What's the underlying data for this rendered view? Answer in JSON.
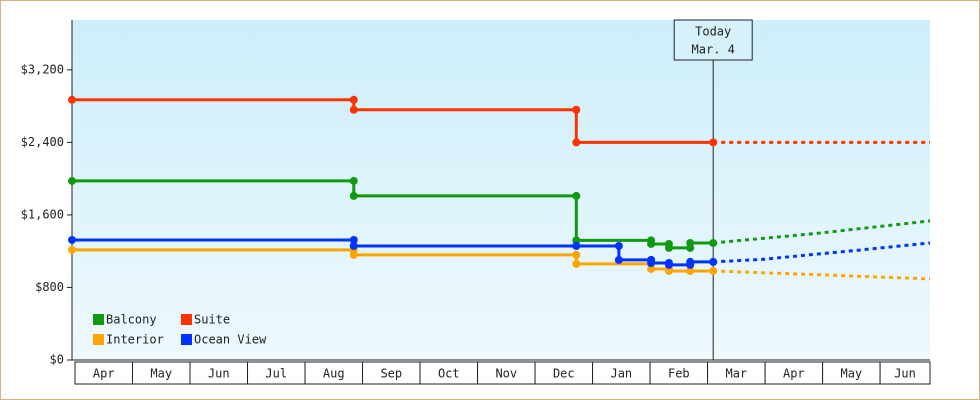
{
  "chart_data": {
    "type": "step-line",
    "categories": [
      "Apr",
      "May",
      "Jun",
      "Jul",
      "Aug",
      "Sep",
      "Oct",
      "Nov",
      "Dec",
      "Jan",
      "Feb",
      "Mar",
      "Apr",
      "May",
      "Jun"
    ],
    "xlim": [
      0,
      14.92
    ],
    "ylim": [
      0,
      3750
    ],
    "yticks": [
      {
        "value": 0,
        "label": "$0"
      },
      {
        "value": 800,
        "label": "$800"
      },
      {
        "value": 1600,
        "label": "$1,600"
      },
      {
        "value": 2400,
        "label": "$2,400"
      },
      {
        "value": 3200,
        "label": "$3,200"
      }
    ],
    "today": {
      "x": 11.15,
      "label": [
        "Today",
        "Mar. 4"
      ]
    },
    "series": [
      {
        "name": "Balcony",
        "color": "#119911",
        "x": [
          0,
          4.9,
          4.9,
          8.77,
          8.77,
          10.07,
          10.07,
          10.38,
          10.38,
          10.75,
          10.75,
          11.15
        ],
        "values": [
          1975,
          1975,
          1810,
          1810,
          1320,
          1320,
          1280,
          1280,
          1236,
          1236,
          1290,
          1290
        ],
        "forecast_x": [
          11.15,
          13,
          14.92
        ],
        "forecast": [
          1290,
          1400,
          1534
        ]
      },
      {
        "name": "Suite",
        "color": "#ff3300",
        "x": [
          0,
          4.9,
          4.9,
          8.77,
          8.77,
          11.15
        ],
        "values": [
          2870,
          2870,
          2760,
          2760,
          2400,
          2400
        ],
        "forecast_x": [
          11.15,
          14.92
        ],
        "forecast": [
          2400,
          2400
        ]
      },
      {
        "name": "Interior",
        "color": "#ffa500",
        "x": [
          0,
          4.9,
          4.9,
          8.77,
          8.77,
          10.07,
          10.07,
          10.38,
          10.38,
          10.75,
          10.75,
          11.15
        ],
        "values": [
          1214,
          1214,
          1159,
          1159,
          1060,
          1060,
          1004,
          1004,
          982,
          982,
          982,
          982
        ],
        "forecast_x": [
          11.15,
          13,
          14.92
        ],
        "forecast": [
          982,
          940,
          894
        ]
      },
      {
        "name": "Ocean View",
        "color": "#0033ff",
        "x": [
          0,
          4.9,
          4.9,
          8.77,
          8.77,
          9.51,
          9.51,
          10.07,
          10.07,
          10.38,
          10.38,
          10.75,
          10.75,
          11.15
        ],
        "values": [
          1324,
          1324,
          1258,
          1258,
          1258,
          1258,
          1104,
          1104,
          1070,
          1070,
          1049,
          1049,
          1082,
          1082
        ],
        "forecast_x": [
          11.15,
          12,
          13.5,
          14.92
        ],
        "forecast": [
          1082,
          1110,
          1200,
          1291
        ]
      }
    ]
  }
}
